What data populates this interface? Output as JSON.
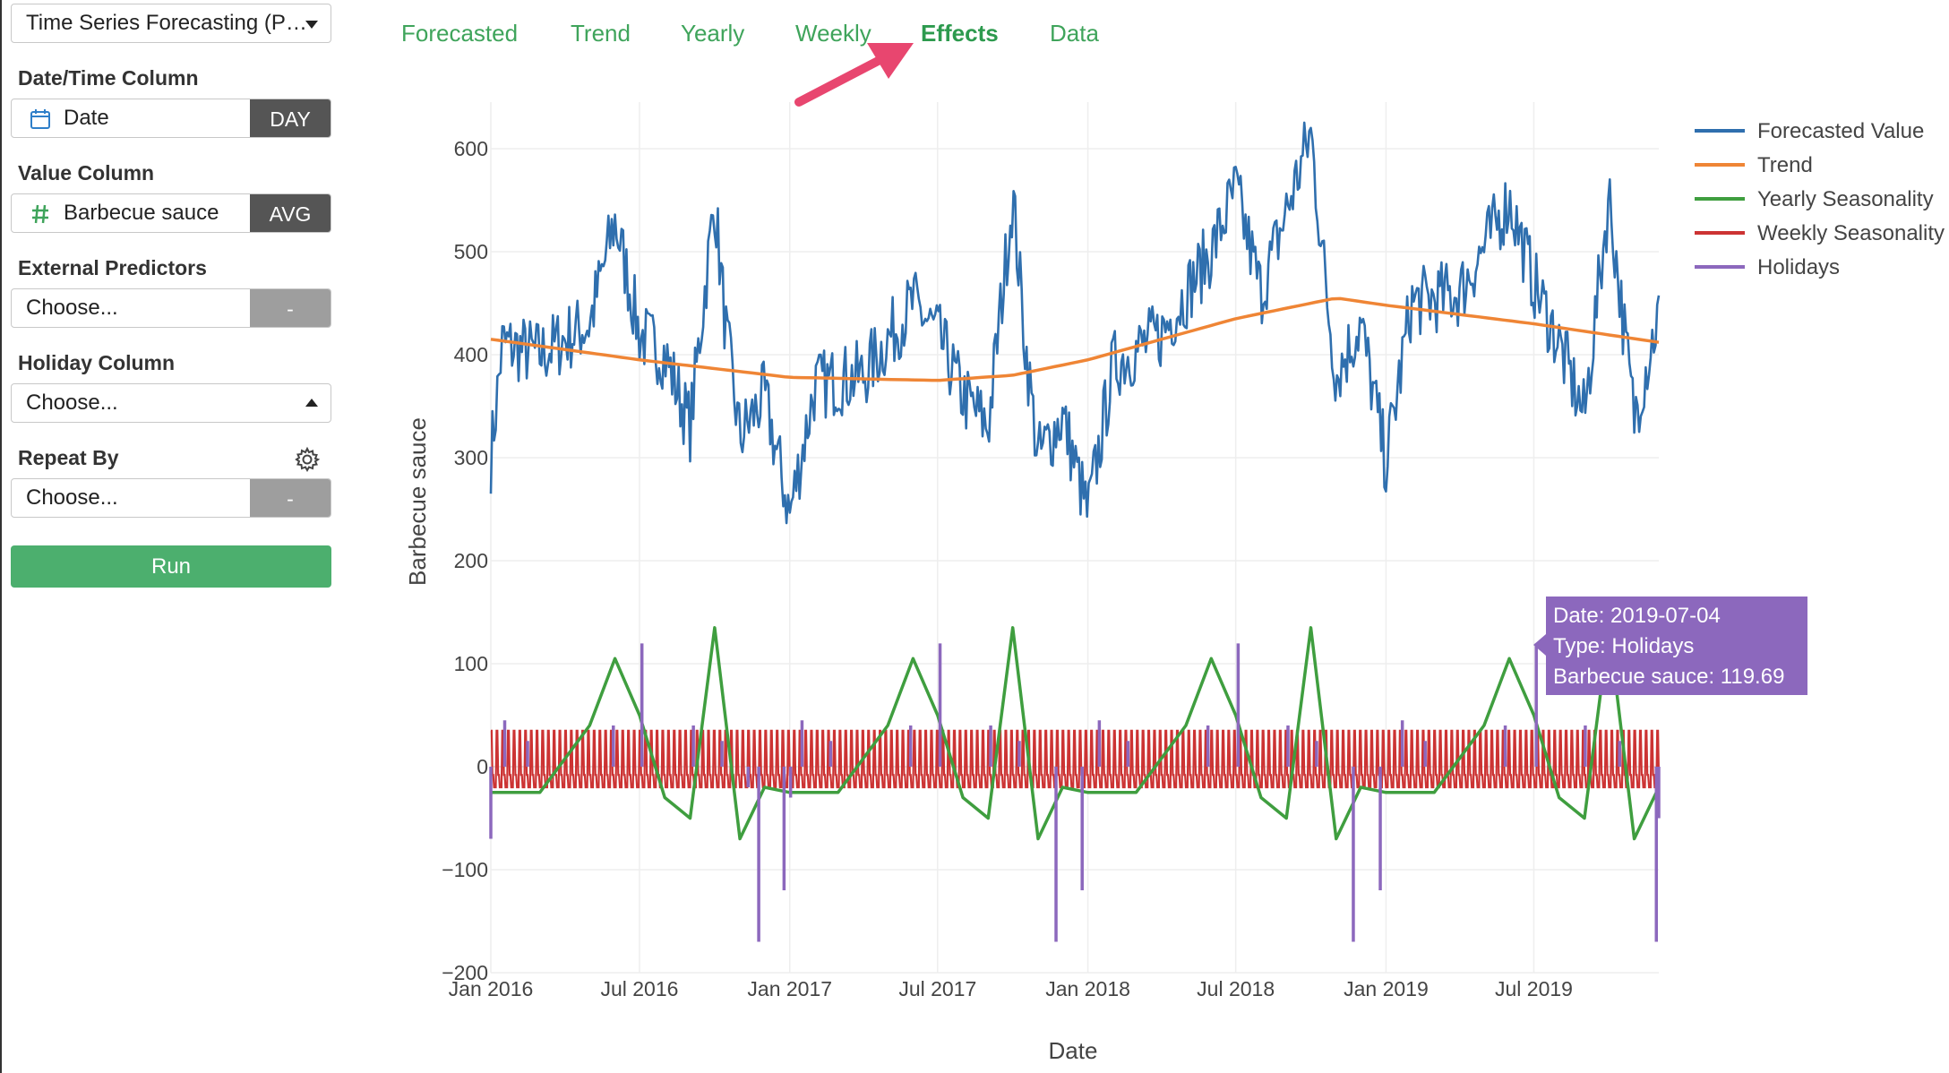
{
  "sidebar": {
    "model_selector": "Time Series Forecasting (P…",
    "datetime_label": "Date/Time Column",
    "datetime_value": "Date",
    "datetime_unit": "DAY",
    "value_label": "Value Column",
    "value_value": "Barbecue sauce",
    "value_agg": "AVG",
    "external_label": "External Predictors",
    "external_value": "Choose...",
    "external_agg": "-",
    "holiday_label": "Holiday Column",
    "holiday_value": "Choose...",
    "repeat_label": "Repeat By",
    "repeat_value": "Choose...",
    "repeat_agg": "-",
    "run_label": "Run"
  },
  "tabs": [
    {
      "label": "Forecasted",
      "active": false
    },
    {
      "label": "Trend",
      "active": false
    },
    {
      "label": "Yearly",
      "active": false
    },
    {
      "label": "Weekly",
      "active": false
    },
    {
      "label": "Effects",
      "active": true
    },
    {
      "label": "Data",
      "active": false
    }
  ],
  "icons": {
    "calendar": "calendar-icon",
    "number": "hash-icon",
    "gear": "gear-icon",
    "pointer": "pointer-arrow-icon"
  },
  "colors": {
    "accent": "#3fa45b",
    "run_button": "#4caf6e",
    "arrow": "#e8466f",
    "tooltip": "#8c68bd"
  },
  "chart_data": {
    "type": "line",
    "xlabel": "Date",
    "ylabel": "Barbecue sauce",
    "x_range": [
      "2016-01-01",
      "2019-12-01"
    ],
    "x_ticks": [
      "Jan 2016",
      "Jul 2016",
      "Jan 2017",
      "Jul 2017",
      "Jan 2018",
      "Jul 2018",
      "Jan 2019",
      "Jul 2019"
    ],
    "y_ticks": [
      "600",
      "500",
      "400",
      "300",
      "200",
      "100",
      "0",
      "−100",
      "−200"
    ],
    "ylim": [
      -200,
      640
    ],
    "grid": true,
    "legend_position": "top-right",
    "series": [
      {
        "name": "Forecasted Value",
        "color": "#2f6fae",
        "note": "daily values, ~300–600 with annual summer/fall peaks",
        "points": [
          [
            "2016-01-01",
            300
          ],
          [
            "2016-01-15",
            410
          ],
          [
            "2016-03-01",
            400
          ],
          [
            "2016-05-01",
            430
          ],
          [
            "2016-06-01",
            530
          ],
          [
            "2016-06-15",
            480
          ],
          [
            "2016-07-01",
            420
          ],
          [
            "2016-08-01",
            400
          ],
          [
            "2016-09-01",
            330
          ],
          [
            "2016-10-01",
            550
          ],
          [
            "2016-10-15",
            420
          ],
          [
            "2016-11-01",
            320
          ],
          [
            "2016-12-01",
            360
          ],
          [
            "2017-01-01",
            245
          ],
          [
            "2017-02-01",
            370
          ],
          [
            "2017-04-01",
            380
          ],
          [
            "2017-06-01",
            450
          ],
          [
            "2017-07-01",
            420
          ],
          [
            "2017-08-01",
            360
          ],
          [
            "2017-09-01",
            330
          ],
          [
            "2017-10-01",
            555
          ],
          [
            "2017-10-15",
            420
          ],
          [
            "2017-11-01",
            300
          ],
          [
            "2017-12-01",
            340
          ],
          [
            "2018-01-01",
            245
          ],
          [
            "2018-02-01",
            390
          ],
          [
            "2018-04-01",
            420
          ],
          [
            "2018-06-01",
            500
          ],
          [
            "2018-07-01",
            560
          ],
          [
            "2018-08-01",
            460
          ],
          [
            "2018-10-01",
            615
          ],
          [
            "2018-10-20",
            460
          ],
          [
            "2018-11-01",
            380
          ],
          [
            "2018-12-01",
            430
          ],
          [
            "2019-01-01",
            295
          ],
          [
            "2019-02-01",
            450
          ],
          [
            "2019-04-01",
            460
          ],
          [
            "2019-06-01",
            550
          ],
          [
            "2019-07-01",
            470
          ],
          [
            "2019-08-01",
            410
          ],
          [
            "2019-09-01",
            340
          ],
          [
            "2019-10-01",
            555
          ],
          [
            "2019-10-20",
            420
          ],
          [
            "2019-11-01",
            340
          ],
          [
            "2019-12-01",
            440
          ]
        ]
      },
      {
        "name": "Trend",
        "color": "#ef8535",
        "points": [
          [
            "2016-01-01",
            415
          ],
          [
            "2016-07-01",
            395
          ],
          [
            "2017-01-01",
            378
          ],
          [
            "2017-07-01",
            375
          ],
          [
            "2017-10-01",
            380
          ],
          [
            "2018-01-01",
            395
          ],
          [
            "2018-07-01",
            435
          ],
          [
            "2018-11-01",
            455
          ],
          [
            "2019-01-01",
            448
          ],
          [
            "2019-07-01",
            430
          ],
          [
            "2019-12-01",
            412
          ]
        ]
      },
      {
        "name": "Yearly Seasonality",
        "color": "#3f9e3f",
        "points": [
          [
            "2016-01-01",
            -25
          ],
          [
            "2016-03-01",
            -25
          ],
          [
            "2016-05-01",
            40
          ],
          [
            "2016-06-01",
            105
          ],
          [
            "2016-07-01",
            50
          ],
          [
            "2016-08-01",
            -30
          ],
          [
            "2016-09-01",
            -50
          ],
          [
            "2016-10-01",
            135
          ],
          [
            "2016-11-01",
            -70
          ],
          [
            "2016-12-01",
            -20
          ],
          [
            "2017-01-01",
            -25
          ],
          [
            "2017-03-01",
            -25
          ],
          [
            "2017-05-01",
            40
          ],
          [
            "2017-06-01",
            105
          ],
          [
            "2017-07-01",
            50
          ],
          [
            "2017-08-01",
            -30
          ],
          [
            "2017-09-01",
            -50
          ],
          [
            "2017-10-01",
            135
          ],
          [
            "2017-11-01",
            -70
          ],
          [
            "2017-12-01",
            -20
          ],
          [
            "2018-01-01",
            -25
          ],
          [
            "2018-03-01",
            -25
          ],
          [
            "2018-05-01",
            40
          ],
          [
            "2018-06-01",
            105
          ],
          [
            "2018-07-01",
            50
          ],
          [
            "2018-08-01",
            -30
          ],
          [
            "2018-09-01",
            -50
          ],
          [
            "2018-10-01",
            135
          ],
          [
            "2018-11-01",
            -70
          ],
          [
            "2018-12-01",
            -20
          ],
          [
            "2019-01-01",
            -25
          ],
          [
            "2019-03-01",
            -25
          ],
          [
            "2019-05-01",
            40
          ],
          [
            "2019-06-01",
            105
          ],
          [
            "2019-07-01",
            50
          ],
          [
            "2019-08-01",
            -30
          ],
          [
            "2019-09-01",
            -50
          ],
          [
            "2019-10-01",
            135
          ],
          [
            "2019-11-01",
            -70
          ],
          [
            "2019-12-01",
            -20
          ]
        ]
      },
      {
        "name": "Weekly Seasonality",
        "color": "#cc3333",
        "note": "weekly oscillation between about −20 and +35"
      },
      {
        "name": "Holidays",
        "color": "#8c68bd",
        "points": [
          [
            "2016-01-01",
            -70
          ],
          [
            "2016-01-18",
            45
          ],
          [
            "2016-02-15",
            25
          ],
          [
            "2016-05-30",
            40
          ],
          [
            "2016-07-04",
            119.69
          ],
          [
            "2016-09-05",
            40
          ],
          [
            "2016-10-10",
            25
          ],
          [
            "2016-11-11",
            -20
          ],
          [
            "2016-11-24",
            -170
          ],
          [
            "2016-12-25",
            -120
          ],
          [
            "2017-01-02",
            -30
          ],
          [
            "2017-01-16",
            45
          ],
          [
            "2017-02-20",
            25
          ],
          [
            "2017-05-29",
            40
          ],
          [
            "2017-07-04",
            119.69
          ],
          [
            "2017-09-04",
            40
          ],
          [
            "2017-10-09",
            25
          ],
          [
            "2017-11-23",
            -170
          ],
          [
            "2017-12-25",
            -120
          ],
          [
            "2018-01-15",
            45
          ],
          [
            "2018-02-19",
            25
          ],
          [
            "2018-05-28",
            40
          ],
          [
            "2018-07-04",
            119.69
          ],
          [
            "2018-09-03",
            40
          ],
          [
            "2018-10-08",
            25
          ],
          [
            "2018-11-22",
            -170
          ],
          [
            "2018-12-25",
            -120
          ],
          [
            "2019-01-21",
            45
          ],
          [
            "2019-02-18",
            25
          ],
          [
            "2019-05-27",
            40
          ],
          [
            "2019-07-04",
            119.69
          ],
          [
            "2019-09-02",
            40
          ],
          [
            "2019-10-14",
            25
          ],
          [
            "2019-11-28",
            -170
          ],
          [
            "2019-12-01",
            -50
          ]
        ]
      }
    ],
    "tooltip": {
      "date": "Date: 2019-07-04",
      "type": "Type: Holidays",
      "value": "Barbecue sauce: 119.69"
    }
  }
}
